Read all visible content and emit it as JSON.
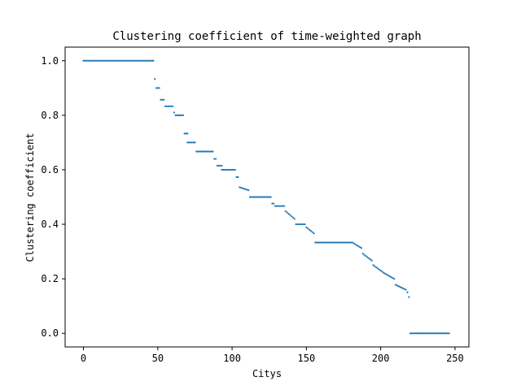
{
  "chart_data": {
    "type": "scatter",
    "title": "Clustering coefficient of time-weighted graph",
    "xlabel": "Citys",
    "ylabel": "Clustering coefficient",
    "xlim": [
      -12.35,
      259.35
    ],
    "ylim": [
      -0.05,
      1.05
    ],
    "xticks": [
      0,
      50,
      100,
      150,
      200,
      250
    ],
    "xtick_labels": [
      "0",
      "50",
      "100",
      "150",
      "200",
      "250"
    ],
    "yticks": [
      0.0,
      0.2,
      0.4,
      0.6,
      0.8,
      1.0
    ],
    "ytick_labels": [
      "0.0",
      "0.2",
      "0.4",
      "0.6",
      "0.8",
      "1.0"
    ],
    "grid": false,
    "legend": "none",
    "marker_color": "#1f77b4",
    "segments": [
      {
        "x_start": 0,
        "x_end": 47,
        "y_start": 1.0,
        "y_end": 1.0
      },
      {
        "x_start": 48,
        "x_end": 48,
        "y_start": 0.933,
        "y_end": 0.933
      },
      {
        "x_start": 49,
        "x_end": 51,
        "y_start": 0.9,
        "y_end": 0.9
      },
      {
        "x_start": 52,
        "x_end": 54,
        "y_start": 0.857,
        "y_end": 0.857
      },
      {
        "x_start": 55,
        "x_end": 60,
        "y_start": 0.833,
        "y_end": 0.833
      },
      {
        "x_start": 61,
        "x_end": 61,
        "y_start": 0.81,
        "y_end": 0.81
      },
      {
        "x_start": 62,
        "x_end": 67,
        "y_start": 0.8,
        "y_end": 0.8
      },
      {
        "x_start": 68,
        "x_end": 70,
        "y_start": 0.733,
        "y_end": 0.733
      },
      {
        "x_start": 70,
        "x_end": 75,
        "y_start": 0.7,
        "y_end": 0.7
      },
      {
        "x_start": 76,
        "x_end": 87,
        "y_start": 0.667,
        "y_end": 0.667
      },
      {
        "x_start": 88,
        "x_end": 89,
        "y_start": 0.64,
        "y_end": 0.64
      },
      {
        "x_start": 90,
        "x_end": 93,
        "y_start": 0.615,
        "y_end": 0.615
      },
      {
        "x_start": 93,
        "x_end": 102,
        "y_start": 0.6,
        "y_end": 0.6
      },
      {
        "x_start": 103,
        "x_end": 104,
        "y_start": 0.573,
        "y_end": 0.573
      },
      {
        "x_start": 105,
        "x_end": 111,
        "y_start": 0.536,
        "y_end": 0.525
      },
      {
        "x_start": 112,
        "x_end": 126,
        "y_start": 0.5,
        "y_end": 0.5
      },
      {
        "x_start": 127,
        "x_end": 128,
        "y_start": 0.476,
        "y_end": 0.476
      },
      {
        "x_start": 129,
        "x_end": 135,
        "y_start": 0.467,
        "y_end": 0.467
      },
      {
        "x_start": 136,
        "x_end": 142,
        "y_start": 0.448,
        "y_end": 0.42
      },
      {
        "x_start": 143,
        "x_end": 149,
        "y_start": 0.4,
        "y_end": 0.4
      },
      {
        "x_start": 150,
        "x_end": 155,
        "y_start": 0.389,
        "y_end": 0.367
      },
      {
        "x_start": 156,
        "x_end": 180,
        "y_start": 0.333,
        "y_end": 0.333
      },
      {
        "x_start": 181,
        "x_end": 187,
        "y_start": 0.333,
        "y_end": 0.313
      },
      {
        "x_start": 188,
        "x_end": 194,
        "y_start": 0.292,
        "y_end": 0.267
      },
      {
        "x_start": 195,
        "x_end": 201,
        "y_start": 0.25,
        "y_end": 0.226
      },
      {
        "x_start": 202,
        "x_end": 209,
        "y_start": 0.222,
        "y_end": 0.2
      },
      {
        "x_start": 210,
        "x_end": 217,
        "y_start": 0.178,
        "y_end": 0.16
      },
      {
        "x_start": 218,
        "x_end": 219,
        "y_start": 0.15,
        "y_end": 0.133
      },
      {
        "x_start": 220,
        "x_end": 246,
        "y_start": 0.0,
        "y_end": 0.0
      }
    ]
  }
}
